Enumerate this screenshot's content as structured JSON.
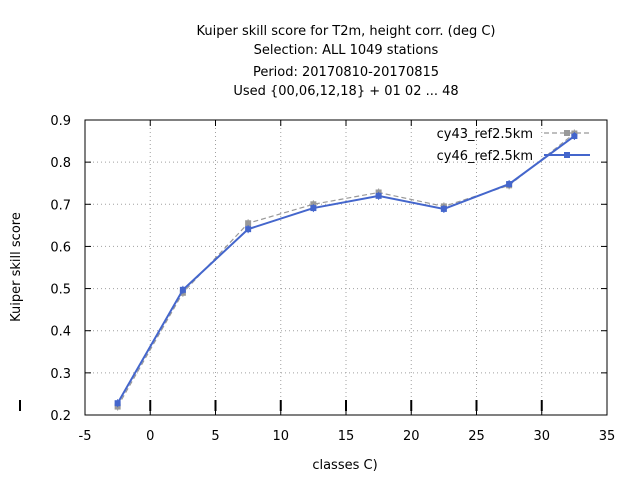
{
  "chart_data": {
    "type": "line",
    "title_lines": [
      "Kuiper skill score  for T2m, height corr. (deg C)",
      "Selection: ALL    1049 stations",
      "Period: 20170810-20170815",
      "Used {00,06,12,18} + 01 02 ... 48"
    ],
    "xlabel": "classes C)",
    "ylabel": "Kuiper skill score",
    "xlim": [
      -5,
      35
    ],
    "ylim": [
      0.2,
      0.9
    ],
    "xticks": [
      -5,
      0,
      5,
      10,
      15,
      20,
      25,
      30,
      35
    ],
    "yticks": [
      0.2,
      0.3,
      0.4,
      0.5,
      0.6,
      0.7,
      0.8,
      0.9
    ],
    "x_tick_labels": [
      "-5",
      "0",
      "5",
      "10",
      "15",
      "20",
      "25",
      "30",
      "35"
    ],
    "y_tick_labels": [
      "0.2",
      "0.3",
      "0.4",
      "0.5",
      "0.6",
      "0.7",
      "0.8",
      "0.9"
    ],
    "grid": true,
    "legend_position": "top-right",
    "series": [
      {
        "name": "cy43_ref2.5km",
        "color": "#999999",
        "dashed": true,
        "x": [
          -2.5,
          2.5,
          7.5,
          12.5,
          17.5,
          22.5,
          27.5,
          32.5
        ],
        "values": [
          0.22,
          0.49,
          0.655,
          0.7,
          0.728,
          0.695,
          0.745,
          0.868
        ]
      },
      {
        "name": "cy46_ref2.5km",
        "color": "#4466cc",
        "dashed": false,
        "x": [
          -2.5,
          2.5,
          7.5,
          12.5,
          17.5,
          22.5,
          27.5,
          32.5
        ],
        "values": [
          0.228,
          0.497,
          0.641,
          0.691,
          0.72,
          0.689,
          0.748,
          0.862
        ]
      }
    ]
  }
}
